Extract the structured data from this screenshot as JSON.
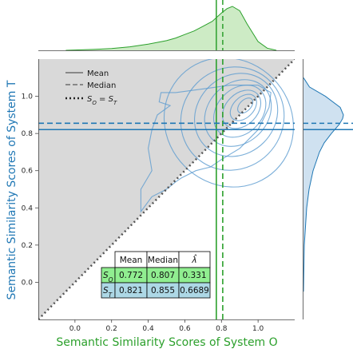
{
  "colors": {
    "system_o": "#2ca02c",
    "system_t": "#1f77b4",
    "identity_line": "#555555",
    "shade": "#d9d9d9",
    "kde_fill_top": "#cdebc5",
    "kde_fill_right": "#cfe1f0",
    "contour": "#5b9bd0",
    "row_o_fill": "#90ee90",
    "row_t_fill": "#add8e6"
  },
  "chart_data": {
    "type": "scatter",
    "subtype": "joint-kde-contour",
    "xlabel": "Semantic Similarity Scores of System O",
    "ylabel": "Semantic Similarity Scores of System T",
    "xlim": [
      -0.2,
      1.2
    ],
    "ylim": [
      -0.2,
      1.2
    ],
    "xticks": [
      "0.0",
      "0.2",
      "0.4",
      "0.6",
      "0.8",
      "1.0"
    ],
    "yticks": [
      "0.0",
      "0.2",
      "0.4",
      "0.6",
      "0.8",
      "1.0"
    ],
    "grid": false,
    "shaded_region": "above the identity line",
    "reference_lines": {
      "system_o_mean": 0.772,
      "system_o_median": 0.807,
      "system_t_mean": 0.821,
      "system_t_median": 0.855
    },
    "identity_line": {
      "from": [
        -0.2,
        -0.2
      ],
      "to": [
        1.2,
        1.2
      ]
    },
    "contours": [
      {
        "cx": 0.84,
        "cy": 0.86,
        "rx": 0.34,
        "ry": 0.36,
        "rot": -45
      },
      {
        "cx": 0.86,
        "cy": 0.88,
        "rx": 0.29,
        "ry": 0.27,
        "rot": -45
      },
      {
        "cx": 0.88,
        "cy": 0.9,
        "rx": 0.24,
        "ry": 0.21,
        "rot": -45
      },
      {
        "cx": 0.89,
        "cy": 0.91,
        "rx": 0.2,
        "ry": 0.16,
        "rot": -45
      },
      {
        "cx": 0.9,
        "cy": 0.92,
        "rx": 0.16,
        "ry": 0.12,
        "rot": -45
      },
      {
        "cx": 0.91,
        "cy": 0.93,
        "rx": 0.12,
        "ry": 0.085,
        "rot": -45
      },
      {
        "cx": 0.92,
        "cy": 0.94,
        "rx": 0.085,
        "ry": 0.055,
        "rot": -45
      },
      {
        "cx": 0.93,
        "cy": 0.95,
        "rx": 0.05,
        "ry": 0.03,
        "rot": -45
      }
    ],
    "outer_contour": [
      [
        0.36,
        0.38
      ],
      [
        0.42,
        0.46
      ],
      [
        0.5,
        0.5
      ],
      [
        0.55,
        0.54
      ],
      [
        0.58,
        0.56
      ],
      [
        0.66,
        0.6
      ],
      [
        0.74,
        0.62
      ],
      [
        0.8,
        0.66
      ],
      [
        0.9,
        0.72
      ],
      [
        1.0,
        0.82
      ],
      [
        1.06,
        0.94
      ],
      [
        1.07,
        1.02
      ],
      [
        1.0,
        1.06
      ],
      [
        0.85,
        1.06
      ],
      [
        0.7,
        1.04
      ],
      [
        0.55,
        1.02
      ],
      [
        0.47,
        1.02
      ],
      [
        0.46,
        0.97
      ],
      [
        0.52,
        0.95
      ],
      [
        0.45,
        0.9
      ],
      [
        0.42,
        0.82
      ],
      [
        0.4,
        0.72
      ],
      [
        0.42,
        0.6
      ],
      [
        0.36,
        0.5
      ],
      [
        0.36,
        0.38
      ]
    ],
    "kde_x": {
      "x": [
        -0.05,
        0.1,
        0.2,
        0.3,
        0.4,
        0.5,
        0.55,
        0.6,
        0.65,
        0.7,
        0.75,
        0.8,
        0.83,
        0.86,
        0.9,
        0.94,
        1.0,
        1.05,
        1.1
      ],
      "density": [
        0.0,
        0.02,
        0.04,
        0.08,
        0.14,
        0.22,
        0.28,
        0.36,
        0.44,
        0.55,
        0.66,
        0.85,
        0.95,
        1.0,
        0.9,
        0.6,
        0.2,
        0.05,
        0.0
      ]
    },
    "kde_y": {
      "y": [
        -0.05,
        0.2,
        0.4,
        0.5,
        0.6,
        0.7,
        0.75,
        0.8,
        0.85,
        0.88,
        0.9,
        0.94,
        1.0,
        1.05,
        1.1
      ],
      "density": [
        0.0,
        0.02,
        0.08,
        0.14,
        0.24,
        0.4,
        0.52,
        0.7,
        0.9,
        0.98,
        1.0,
        0.92,
        0.55,
        0.15,
        0.0
      ]
    },
    "legend": {
      "placement": "upper-left",
      "items": [
        {
          "style": "solid",
          "label": "Mean"
        },
        {
          "style": "dashed",
          "label": "Median"
        },
        {
          "style": "dotted",
          "label": "S_O = S_T",
          "symbol": "S",
          "sub1": "O",
          "eq": " = ",
          "sub2": "T"
        }
      ]
    },
    "table": {
      "headers": [
        "Mean",
        "Median",
        "λ̂"
      ],
      "rows": [
        {
          "label_symbol": "S",
          "label_sub": "O",
          "values": [
            "0.772",
            "0.807",
            "0.331"
          ]
        },
        {
          "label_symbol": "S",
          "label_sub": "T",
          "values": [
            "0.821",
            "0.855",
            "0.6689"
          ]
        }
      ]
    }
  }
}
